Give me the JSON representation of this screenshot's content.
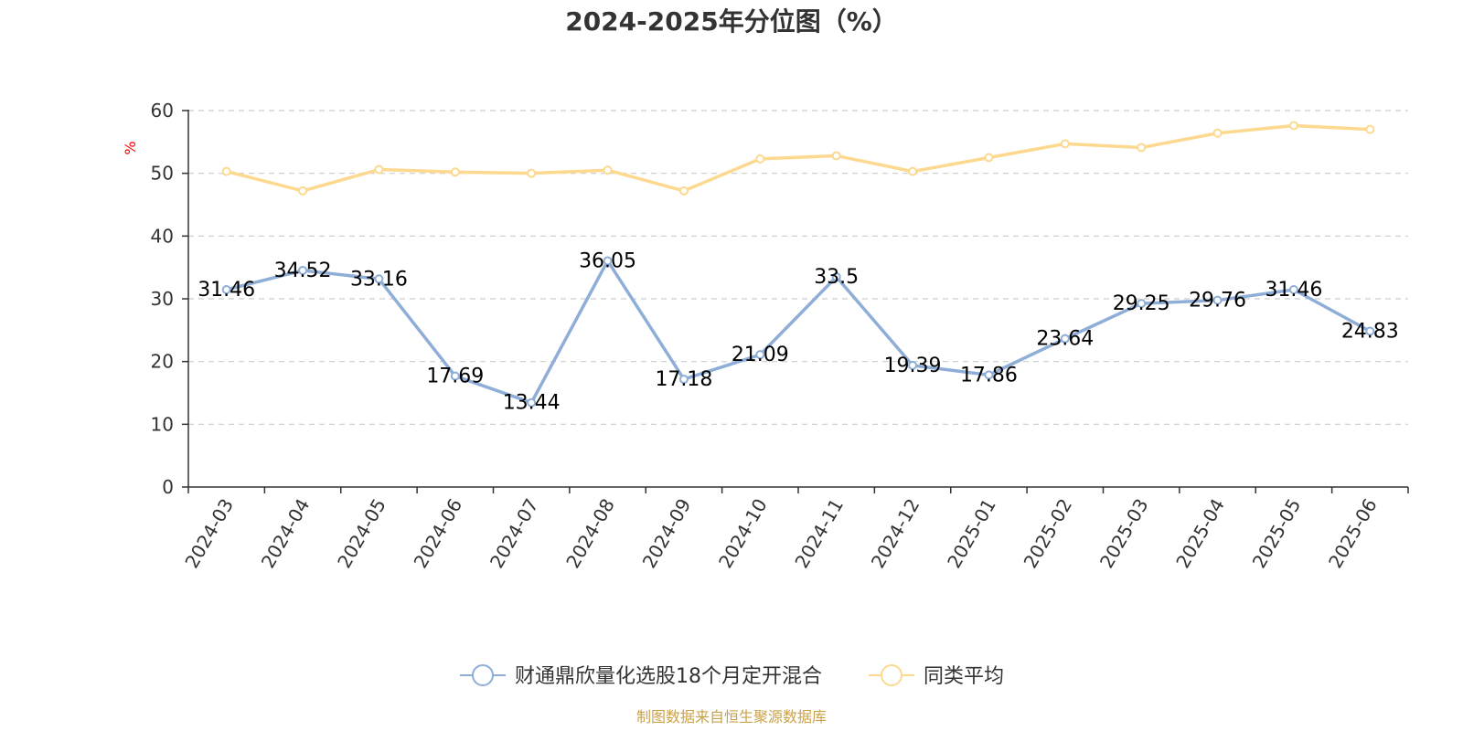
{
  "chart_data": {
    "type": "line",
    "title": "2024-2025年分位图（%）",
    "ylabel": "%",
    "xlabel": "",
    "ylim": [
      0,
      60
    ],
    "yticks": [
      0,
      10,
      20,
      30,
      40,
      50,
      60
    ],
    "grid": true,
    "legend_position": "bottom",
    "categories": [
      "2024-03",
      "2024-04",
      "2024-05",
      "2024-06",
      "2024-07",
      "2024-08",
      "2024-09",
      "2024-10",
      "2024-11",
      "2024-12",
      "2025-01",
      "2025-02",
      "2025-03",
      "2025-04",
      "2025-05",
      "2025-06"
    ],
    "series": [
      {
        "name": "财通鼎欣量化选股18个月定开混合",
        "color": "#8eaed8",
        "values": [
          31.46,
          34.52,
          33.16,
          17.69,
          13.44,
          36.05,
          17.18,
          21.09,
          33.5,
          19.39,
          17.86,
          23.64,
          29.25,
          29.76,
          31.46,
          24.83
        ],
        "labels": [
          "31.46",
          "34.52",
          "33.16",
          "17.69",
          "13.44",
          "36.05",
          "17.18",
          "21.09",
          "33.5",
          "19.39",
          "17.86",
          "23.64",
          "29.25",
          "29.76",
          "31.46",
          "24.83"
        ]
      },
      {
        "name": "同类平均",
        "color": "#fcd98f",
        "values": [
          50.3,
          47.2,
          50.6,
          50.2,
          50.0,
          50.5,
          47.2,
          52.3,
          52.8,
          50.3,
          52.5,
          54.7,
          54.1,
          56.4,
          57.6,
          57.0
        ]
      }
    ]
  },
  "source": "制图数据来自恒生聚源数据库"
}
